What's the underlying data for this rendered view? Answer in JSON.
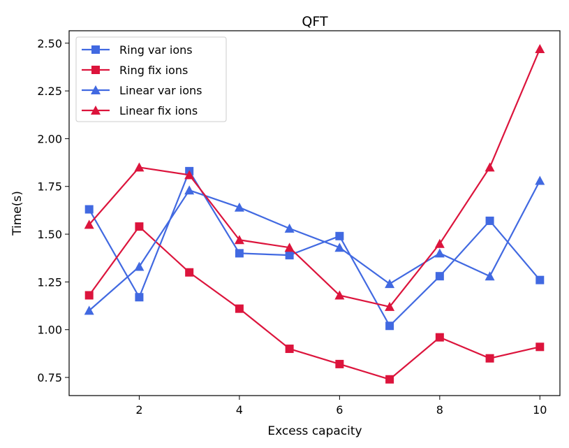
{
  "chart_data": {
    "type": "line",
    "title": "QFT",
    "xlabel": "Excess capacity",
    "ylabel": "Time(s)",
    "xlim": [
      0.6,
      10.4
    ],
    "ylim": [
      0.655,
      2.565
    ],
    "xticks": [
      2,
      4,
      6,
      8,
      10
    ],
    "xtick_labels": [
      "2",
      "4",
      "6",
      "8",
      "10"
    ],
    "yticks": [
      0.75,
      1.0,
      1.25,
      1.5,
      1.75,
      2.0,
      2.25,
      2.5
    ],
    "ytick_labels": [
      "0.75",
      "1.00",
      "1.25",
      "1.50",
      "1.75",
      "2.00",
      "2.25",
      "2.50"
    ],
    "grid": false,
    "legend_position": "top-left",
    "x": [
      1,
      2,
      3,
      4,
      5,
      6,
      7,
      8,
      9,
      10
    ],
    "series": [
      {
        "name": "Ring var ions",
        "color": "#4169e1",
        "marker": "square",
        "values": [
          1.63,
          1.17,
          1.83,
          1.4,
          1.39,
          1.49,
          1.02,
          1.28,
          1.57,
          1.26
        ]
      },
      {
        "name": "Ring fix ions",
        "color": "#dc143c",
        "marker": "square",
        "values": [
          1.18,
          1.54,
          1.3,
          1.11,
          0.9,
          0.82,
          0.74,
          0.96,
          0.85,
          0.91
        ]
      },
      {
        "name": "Linear var ions",
        "color": "#4169e1",
        "marker": "triangle",
        "values": [
          1.1,
          1.33,
          1.73,
          1.64,
          1.53,
          1.43,
          1.24,
          1.4,
          1.28,
          1.78
        ]
      },
      {
        "name": "Linear fix ions",
        "color": "#dc143c",
        "marker": "triangle",
        "values": [
          1.55,
          1.85,
          1.81,
          1.47,
          1.43,
          1.18,
          1.12,
          1.45,
          1.85,
          2.47
        ]
      }
    ]
  }
}
